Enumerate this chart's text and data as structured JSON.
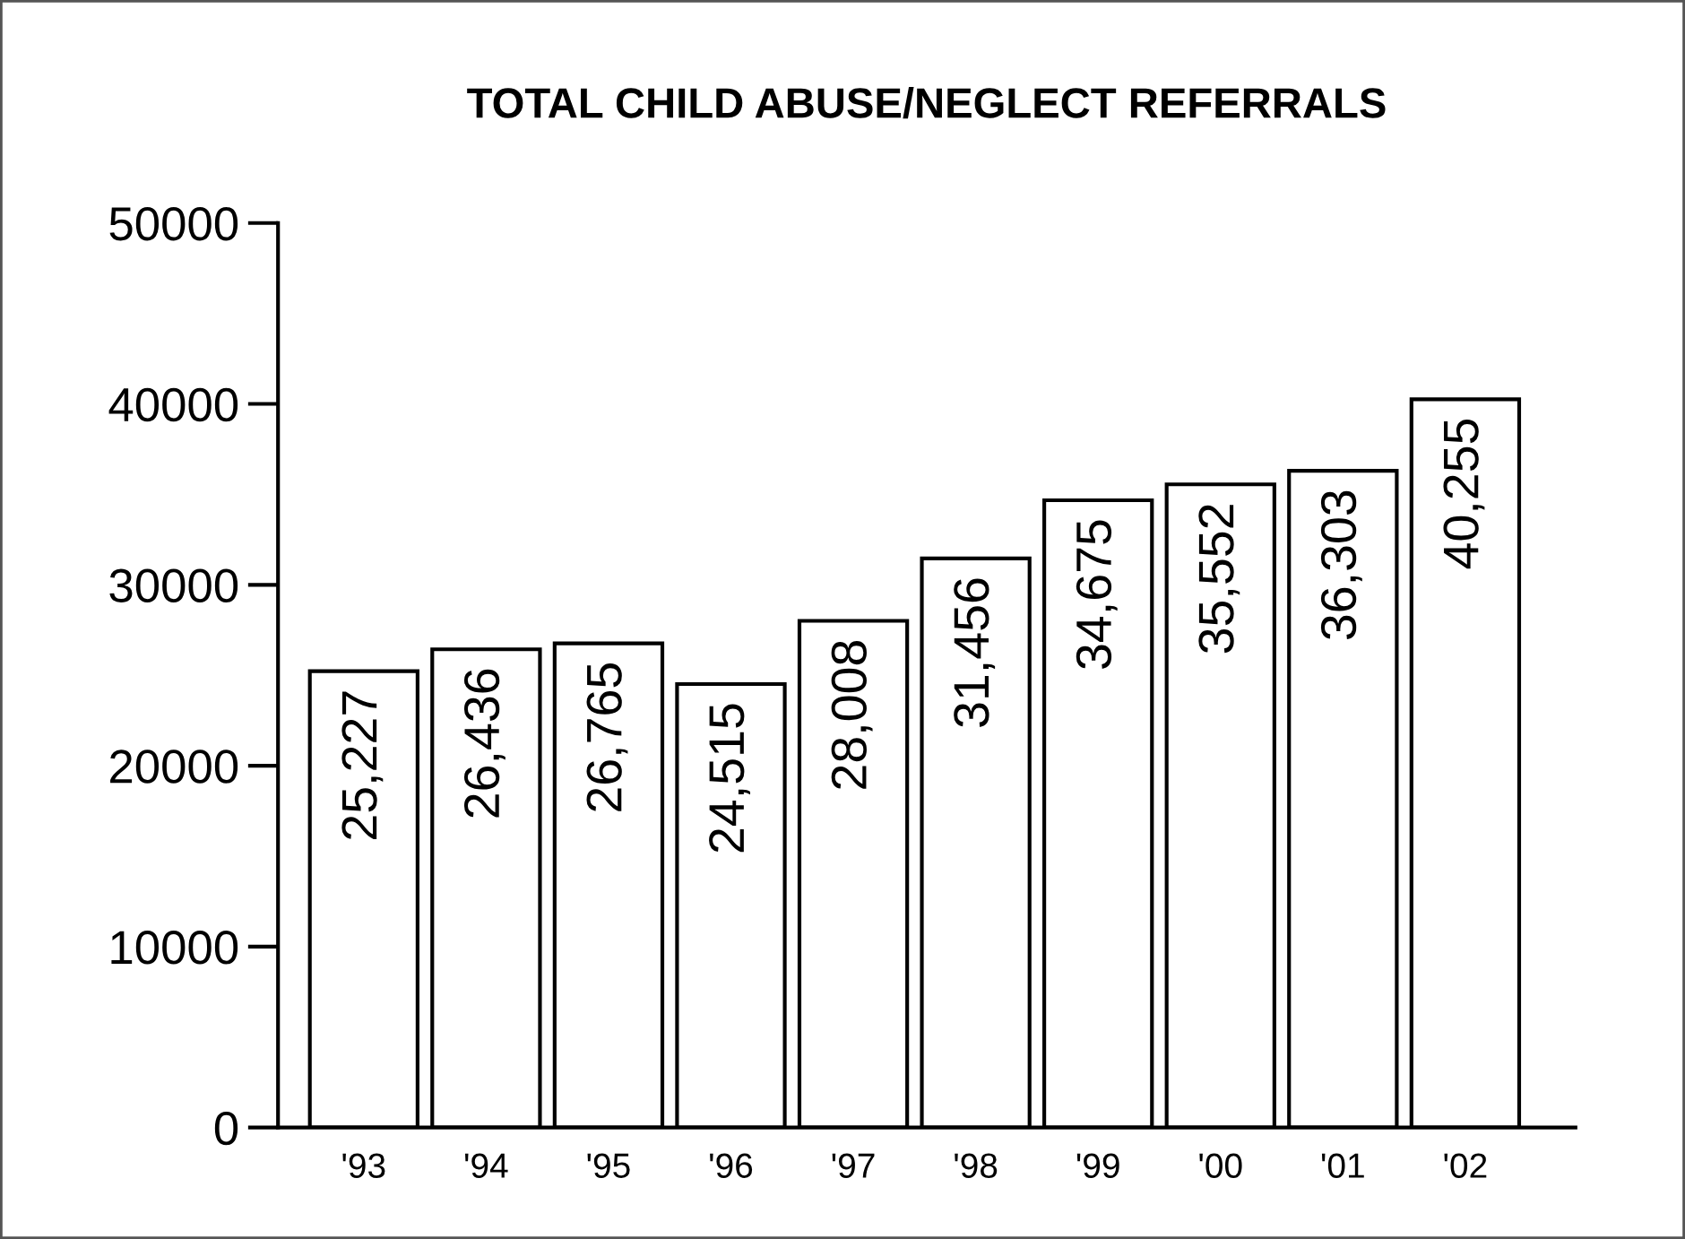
{
  "chart_data": {
    "type": "bar",
    "title": "TOTAL CHILD ABUSE/NEGLECT REFERRALS",
    "categories": [
      "'93",
      "'94",
      "'95",
      "'96",
      "'97",
      "'98",
      "'99",
      "'00",
      "'01",
      "'02"
    ],
    "values": [
      25227,
      26436,
      26765,
      24515,
      28008,
      31456,
      34675,
      35552,
      36303,
      40255
    ],
    "value_labels": [
      "25,227",
      "26,436",
      "26,765",
      "24,515",
      "28,008",
      "31,456",
      "34,675",
      "35,552",
      "36,303",
      "40,255"
    ],
    "color": "#ffffff",
    "ylim": [
      0,
      50000
    ],
    "yticks": [
      0,
      10000,
      20000,
      30000,
      40000,
      50000
    ],
    "grid": false,
    "legend": false
  }
}
